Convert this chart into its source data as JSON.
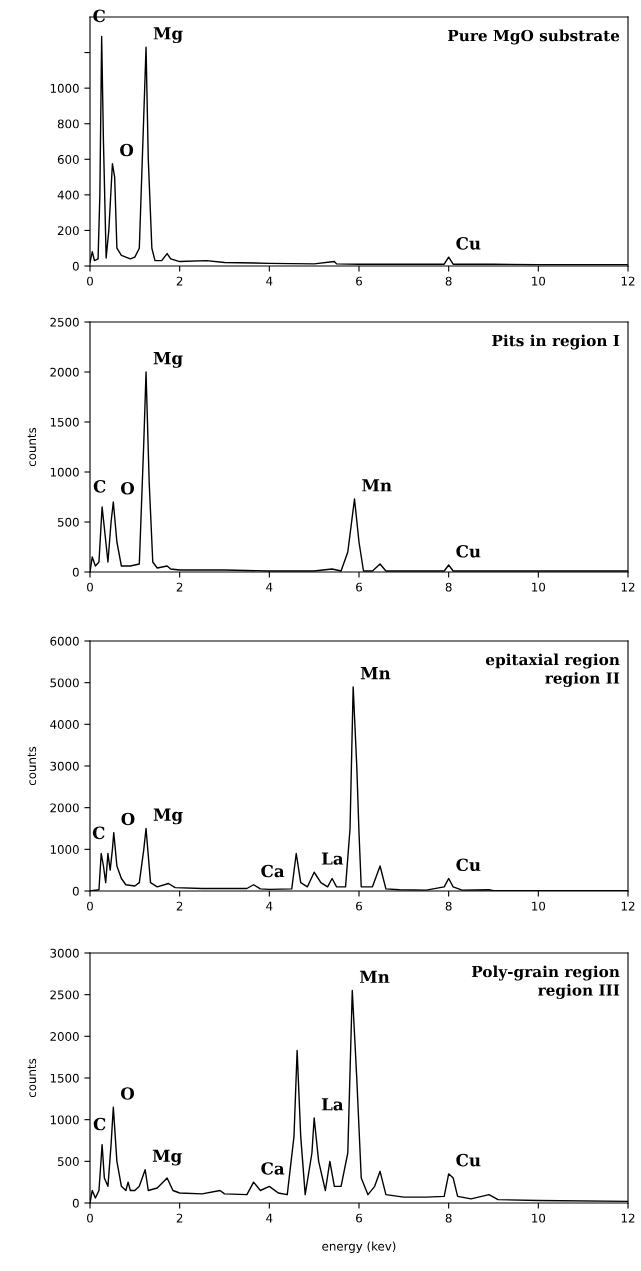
{
  "chart_data": [
    {
      "type": "line",
      "title": "Pure MgO substrate",
      "color": "#000000",
      "xlim": [
        0,
        12
      ],
      "xticks": [
        0,
        2,
        4,
        6,
        8,
        10,
        12
      ],
      "ylim": [
        0,
        1400
      ],
      "yticks": [
        0,
        200,
        400,
        600,
        800,
        1000,
        {
          "value": 1200,
          "label": null
        }
      ],
      "grid": false,
      "legend": false,
      "marker": "none",
      "line_style": "solid",
      "x": [
        0,
        0.05,
        0.1,
        0.18,
        0.22,
        0.26,
        0.3,
        0.36,
        0.42,
        0.5,
        0.55,
        0.6,
        0.7,
        0.9,
        1.0,
        1.1,
        1.18,
        1.25,
        1.3,
        1.38,
        1.45,
        1.6,
        1.72,
        1.8,
        2.0,
        2.6,
        3,
        4,
        5,
        5.45,
        5.5,
        6,
        7,
        7.9,
        8.0,
        8.1,
        9,
        10,
        11,
        12
      ],
      "values": [
        20,
        80,
        30,
        40,
        400,
        1290,
        700,
        45,
        200,
        575,
        500,
        100,
        60,
        40,
        50,
        100,
        700,
        1230,
        600,
        100,
        30,
        30,
        70,
        40,
        25,
        30,
        20,
        15,
        12,
        25,
        12,
        10,
        10,
        10,
        50,
        10,
        10,
        8,
        8,
        8
      ],
      "annotations": [
        {
          "text": "C",
          "x": 0.26,
          "y": 1290
        },
        {
          "text": "Mg",
          "x": 1.25,
          "y": 1230
        },
        {
          "text": "O",
          "x": 0.5,
          "y": 575
        },
        {
          "text": "Cu",
          "x": 8.0,
          "y": 50
        }
      ]
    },
    {
      "type": "line",
      "title": "Pits in region I",
      "ylabel": "counts",
      "color": "#000000",
      "xlim": [
        0,
        12
      ],
      "xticks": [
        0,
        2,
        4,
        6,
        8,
        10,
        12
      ],
      "ylim": [
        0,
        2500
      ],
      "yticks": [
        0,
        500,
        1000,
        1500,
        2000,
        2500
      ],
      "grid": false,
      "legend": false,
      "marker": "none",
      "line_style": "solid",
      "x": [
        0,
        0.05,
        0.12,
        0.2,
        0.27,
        0.33,
        0.4,
        0.47,
        0.52,
        0.6,
        0.7,
        0.9,
        1.1,
        1.2,
        1.25,
        1.32,
        1.4,
        1.5,
        1.72,
        1.8,
        2,
        3,
        4,
        5,
        5.4,
        5.6,
        5.75,
        5.9,
        6.0,
        6.1,
        6.3,
        6.47,
        6.6,
        7,
        7.9,
        8.0,
        8.1,
        9,
        10,
        11,
        12
      ],
      "values": [
        0,
        150,
        60,
        100,
        650,
        400,
        100,
        500,
        700,
        300,
        60,
        60,
        80,
        1300,
        2000,
        900,
        100,
        40,
        60,
        30,
        20,
        20,
        10,
        10,
        30,
        10,
        200,
        730,
        300,
        10,
        10,
        80,
        10,
        10,
        10,
        70,
        10,
        10,
        10,
        10,
        10
      ],
      "annotations": [
        {
          "text": "Mg",
          "x": 1.25,
          "y": 2000
        },
        {
          "text": "C",
          "x": 0.27,
          "y": 650
        },
        {
          "text": "O",
          "x": 0.52,
          "y": 700
        },
        {
          "text": "Mn",
          "x": 5.9,
          "y": 730
        },
        {
          "text": "Cu",
          "x": 8.0,
          "y": 70
        }
      ]
    },
    {
      "type": "line",
      "title": "epitaxial region\nregion II",
      "ylabel": "counts",
      "color": "#000000",
      "xlim": [
        0,
        12
      ],
      "xticks": [
        0,
        2,
        4,
        6,
        8,
        10,
        12
      ],
      "ylim": [
        0,
        6000
      ],
      "yticks": [
        0,
        1000,
        2000,
        3000,
        4000,
        5000,
        6000
      ],
      "grid": false,
      "legend": false,
      "marker": "none",
      "line_style": "solid",
      "x": [
        0,
        0.2,
        0.25,
        0.3,
        0.35,
        0.4,
        0.45,
        0.5,
        0.53,
        0.6,
        0.7,
        0.8,
        1.0,
        1.1,
        1.2,
        1.25,
        1.35,
        1.5,
        1.75,
        1.9,
        2.5,
        3.5,
        3.65,
        3.8,
        4.0,
        4.5,
        4.6,
        4.7,
        4.85,
        5.0,
        5.15,
        5.3,
        5.4,
        5.5,
        5.7,
        5.8,
        5.87,
        5.95,
        6.0,
        6.05,
        6.3,
        6.47,
        6.6,
        6.9,
        7.5,
        7.9,
        8.0,
        8.1,
        8.3,
        8.9,
        9,
        10,
        12
      ],
      "values": [
        0,
        30,
        900,
        600,
        200,
        900,
        500,
        1000,
        1400,
        600,
        300,
        150,
        120,
        200,
        1000,
        1500,
        200,
        100,
        180,
        80,
        60,
        60,
        150,
        50,
        40,
        50,
        900,
        200,
        100,
        450,
        200,
        100,
        300,
        100,
        100,
        1500,
        4900,
        3000,
        1400,
        100,
        100,
        600,
        50,
        30,
        20,
        100,
        300,
        100,
        20,
        30,
        10,
        10,
        10
      ],
      "annotations": [
        {
          "text": "C",
          "x": 0.25,
          "y": 900
        },
        {
          "text": "O",
          "x": 0.53,
          "y": 1400
        },
        {
          "text": "Mg",
          "x": 1.25,
          "y": 1500
        },
        {
          "text": "Ca",
          "x": 3.65,
          "y": 150
        },
        {
          "text": "La",
          "x": 5.0,
          "y": 450
        },
        {
          "text": "Mn",
          "x": 5.87,
          "y": 4900
        },
        {
          "text": "Cu",
          "x": 8.0,
          "y": 300
        }
      ]
    },
    {
      "type": "line",
      "title": "Poly-grain region\nregion III",
      "ylabel": "counts",
      "xlabel": "energy (kev)",
      "color": "#000000",
      "xlim": [
        0,
        12
      ],
      "xticks": [
        0,
        2,
        4,
        6,
        8,
        10,
        12
      ],
      "ylim": [
        0,
        3000
      ],
      "yticks": [
        0,
        500,
        1000,
        1500,
        2000,
        2500,
        3000
      ],
      "grid": false,
      "legend": false,
      "marker": "none",
      "line_style": "solid",
      "x": [
        0,
        0.05,
        0.12,
        0.2,
        0.27,
        0.32,
        0.4,
        0.47,
        0.52,
        0.6,
        0.7,
        0.8,
        0.85,
        0.9,
        1.0,
        1.1,
        1.23,
        1.3,
        1.5,
        1.72,
        1.85,
        2,
        2.5,
        2.9,
        3,
        3.5,
        3.65,
        3.8,
        4.0,
        4.2,
        4.4,
        4.55,
        4.62,
        4.7,
        4.8,
        4.95,
        5.0,
        5.1,
        5.25,
        5.35,
        5.45,
        5.6,
        5.75,
        5.85,
        5.95,
        6.05,
        6.2,
        6.35,
        6.47,
        6.6,
        7,
        7.5,
        7.9,
        8.0,
        8.1,
        8.2,
        8.5,
        8.9,
        9.1,
        10,
        12
      ],
      "values": [
        0,
        150,
        60,
        150,
        700,
        300,
        200,
        700,
        1150,
        500,
        200,
        150,
        250,
        150,
        150,
        200,
        400,
        150,
        180,
        300,
        150,
        120,
        110,
        150,
        110,
        100,
        250,
        150,
        200,
        120,
        100,
        800,
        1830,
        800,
        100,
        600,
        1020,
        500,
        150,
        500,
        200,
        200,
        600,
        2550,
        1500,
        300,
        100,
        200,
        380,
        100,
        70,
        70,
        80,
        350,
        300,
        80,
        50,
        100,
        40,
        30,
        20
      ],
      "annotations": [
        {
          "text": "C",
          "x": 0.27,
          "y": 700
        },
        {
          "text": "O",
          "x": 0.52,
          "y": 1150
        },
        {
          "text": "Mg",
          "x": 1.23,
          "y": 400
        },
        {
          "text": "Ca",
          "x": 3.65,
          "y": 250
        },
        {
          "text": "La",
          "x": 5.0,
          "y": 1020
        },
        {
          "text": "Mn",
          "x": 5.85,
          "y": 2550
        },
        {
          "text": "Cu",
          "x": 8.0,
          "y": 350
        }
      ]
    }
  ]
}
